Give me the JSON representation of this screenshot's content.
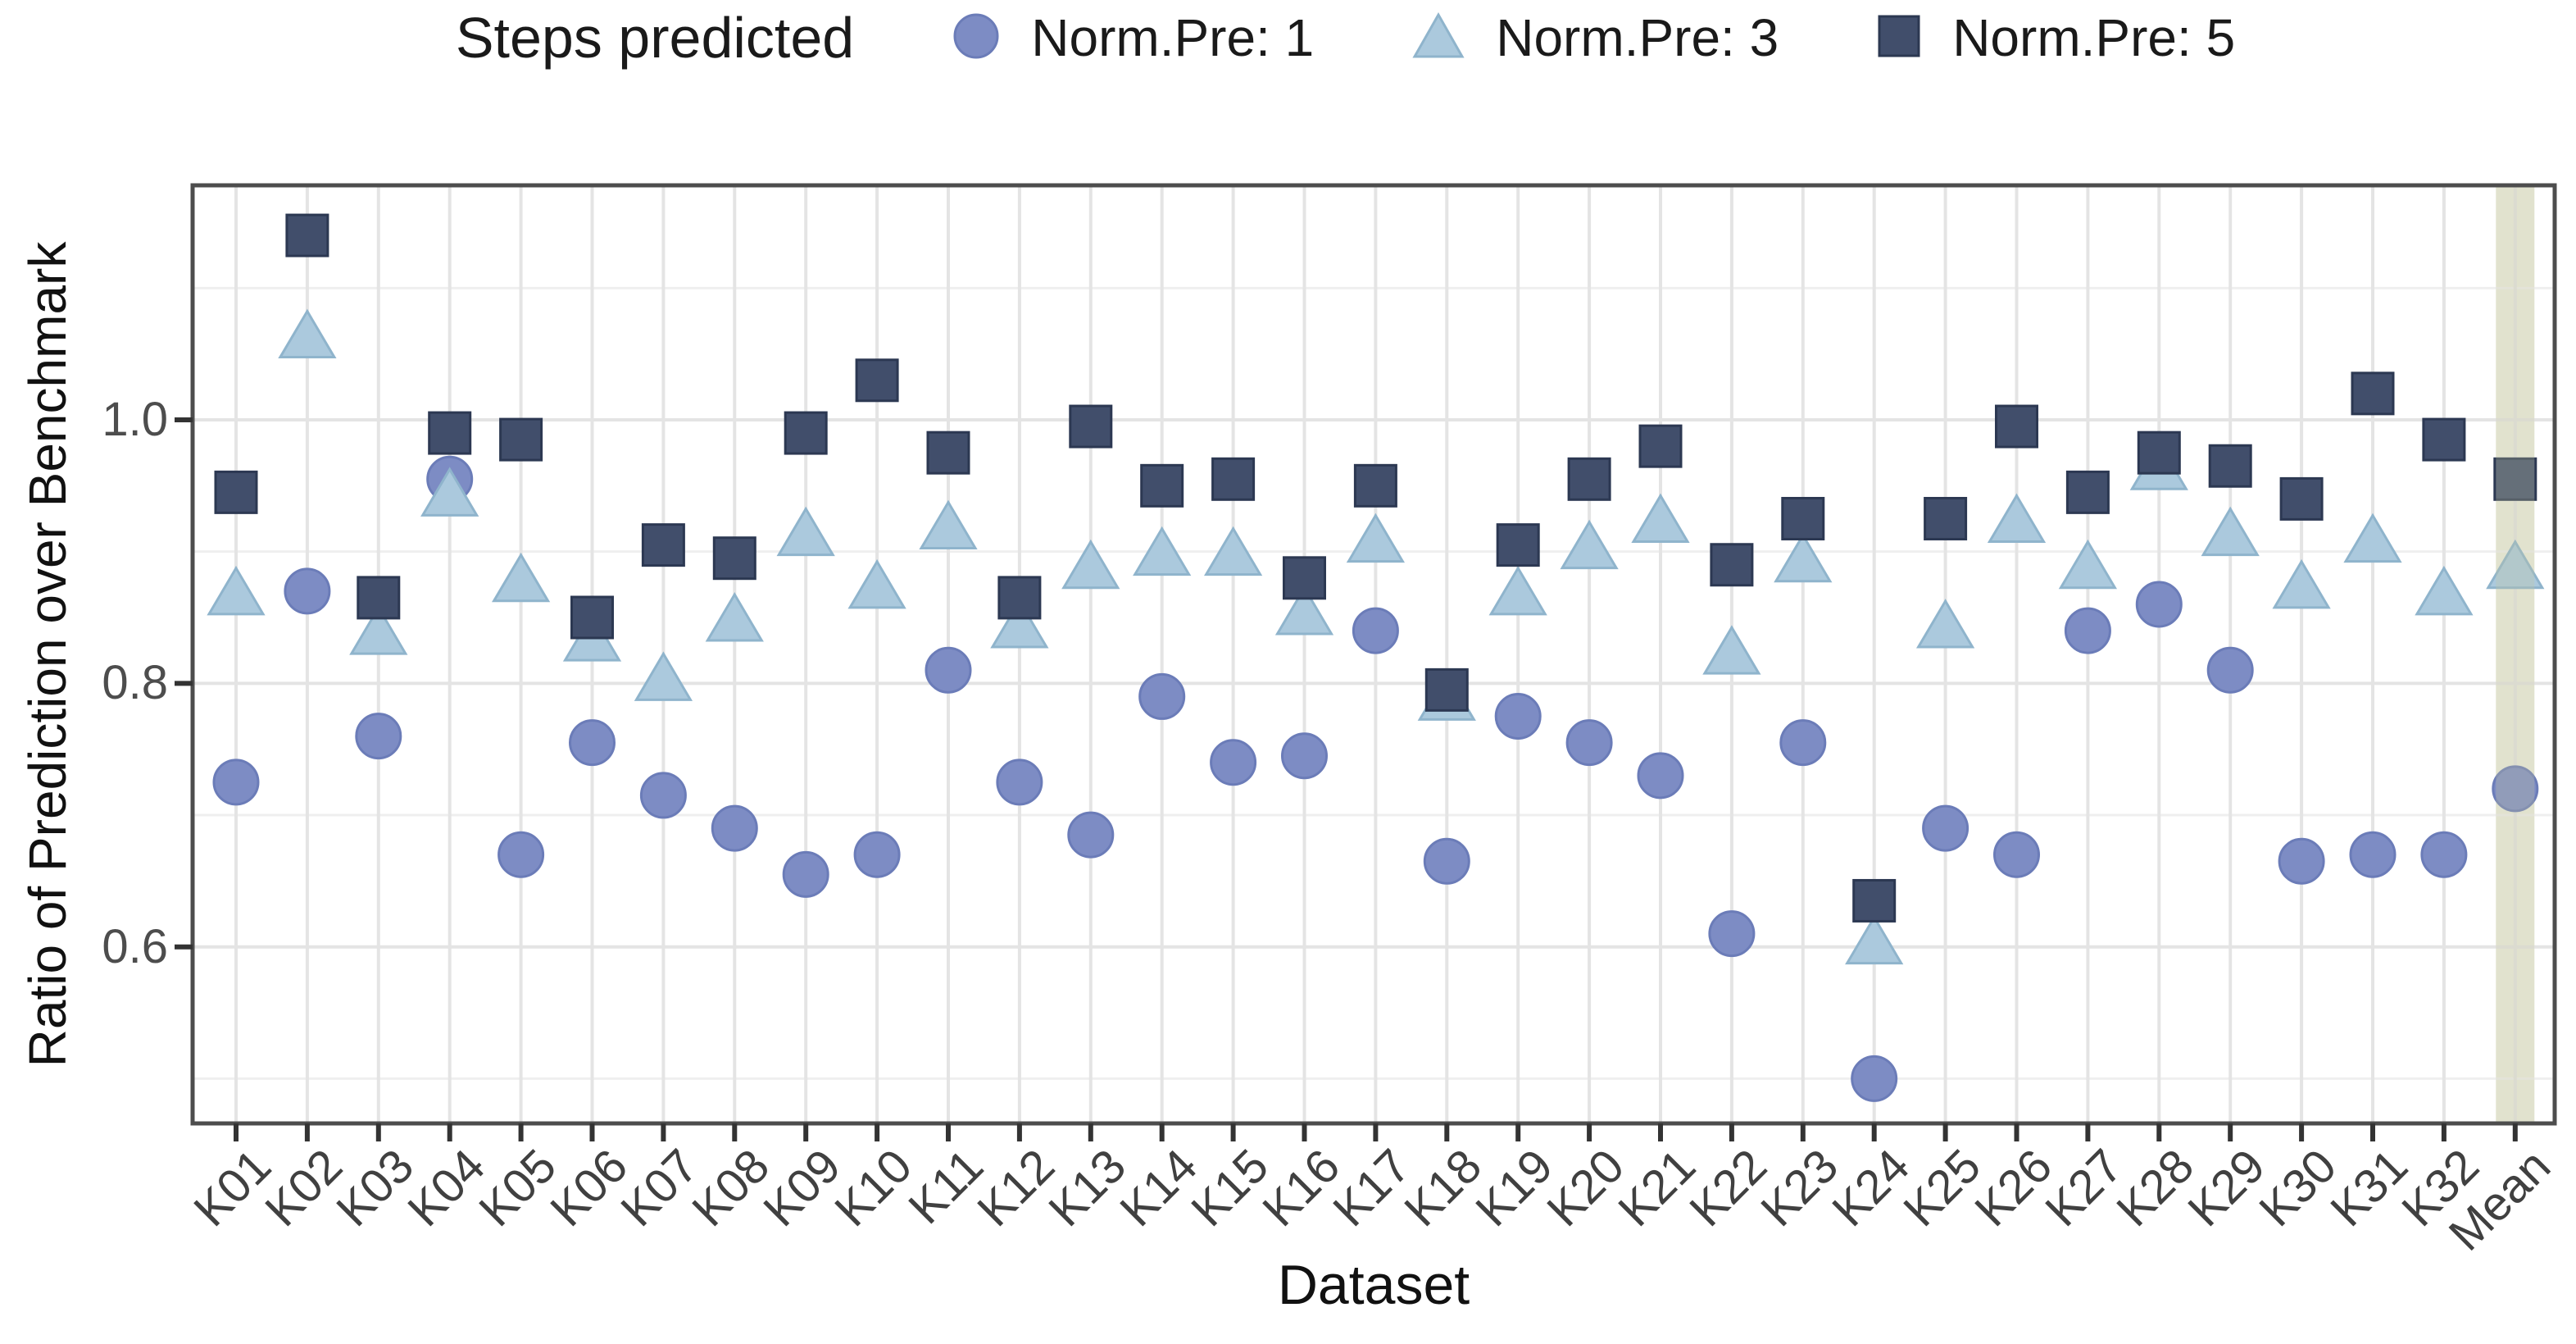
{
  "legend": {
    "title": "Steps predicted",
    "items": [
      {
        "label": "Norm.Pre: 1",
        "marker": "circle"
      },
      {
        "label": "Norm.Pre: 3",
        "marker": "triangle"
      },
      {
        "label": "Norm.Pre: 5",
        "marker": "square"
      }
    ]
  },
  "axes": {
    "y_title": "Ratio of Prediction over Benchmark",
    "x_title": "Dataset",
    "y_tick_labels": [
      "1.0",
      "0.8",
      "0.6"
    ],
    "y_tick_values": [
      1.0,
      0.8,
      0.6
    ]
  },
  "colors": {
    "circle_fill": "#7d8cc4",
    "circle_stroke": "#6b7cb8",
    "triangle_fill": "#abc9dd",
    "triangle_stroke": "#8fb4cc",
    "square_fill": "#414e6b",
    "square_stroke": "#2c3852",
    "grid_major": "#e4e4e4",
    "grid_minor": "#efefef",
    "panel_border": "#4d4d4d",
    "tick_mark": "#333333",
    "band_fill": "#ecede1",
    "band_overlay": "rgba(196,199,158,0.28)"
  },
  "chart_data": {
    "type": "scatter",
    "title": "",
    "xlabel": "Dataset",
    "ylabel": "Ratio of Prediction over Benchmark",
    "ylim": [
      0.466,
      1.178
    ],
    "y_major_gridlines": [
      0.6,
      0.8,
      1.0
    ],
    "y_minor_gridlines": [
      0.5,
      0.7,
      0.9,
      1.1
    ],
    "legend_position": "top",
    "grid": true,
    "highlight_band": {
      "category": "Mean"
    },
    "categories": [
      "K01",
      "K02",
      "K03",
      "K04",
      "K05",
      "K06",
      "K07",
      "K08",
      "K09",
      "K10",
      "K11",
      "K12",
      "K13",
      "K14",
      "K15",
      "K16",
      "K17",
      "K18",
      "K19",
      "K20",
      "K21",
      "K22",
      "K23",
      "K24",
      "K25",
      "K26",
      "K27",
      "K28",
      "K29",
      "K30",
      "K31",
      "K32",
      "Mean"
    ],
    "series": [
      {
        "name": "Norm.Pre: 1",
        "marker": "circle",
        "values": [
          0.725,
          0.87,
          0.76,
          0.955,
          0.67,
          0.755,
          0.715,
          0.69,
          0.655,
          0.67,
          0.81,
          0.725,
          0.685,
          0.79,
          0.74,
          0.745,
          0.84,
          0.665,
          0.775,
          0.755,
          0.73,
          0.61,
          0.755,
          0.5,
          0.69,
          0.67,
          0.84,
          0.86,
          0.81,
          0.665,
          0.67,
          0.67,
          0.72
        ]
      },
      {
        "name": "Norm.Pre: 3",
        "marker": "triangle",
        "values": [
          0.87,
          1.065,
          0.84,
          0.945,
          0.88,
          0.835,
          0.805,
          0.85,
          0.915,
          0.875,
          0.92,
          0.845,
          0.89,
          0.9,
          0.9,
          0.855,
          0.91,
          0.79,
          0.87,
          0.905,
          0.925,
          0.825,
          0.895,
          0.605,
          0.845,
          0.925,
          0.89,
          0.965,
          0.915,
          0.875,
          0.91,
          0.87,
          0.89
        ]
      },
      {
        "name": "Norm.Pre: 5",
        "marker": "square",
        "values": [
          0.945,
          1.14,
          0.865,
          0.99,
          0.985,
          0.85,
          0.905,
          0.895,
          0.99,
          1.03,
          0.975,
          0.865,
          0.995,
          0.95,
          0.955,
          0.88,
          0.95,
          0.795,
          0.905,
          0.955,
          0.98,
          0.89,
          0.925,
          0.635,
          0.925,
          0.995,
          0.945,
          0.975,
          0.965,
          0.94,
          1.02,
          0.985,
          0.955
        ]
      }
    ]
  }
}
